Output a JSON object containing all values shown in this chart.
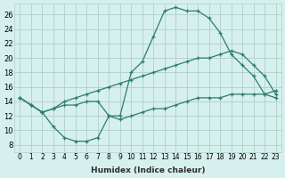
{
  "xlabel": "Humidex (Indice chaleur)",
  "background_color": "#d6f0ed",
  "grid_color": "#b0cfc9",
  "line_color": "#2d7d6e",
  "xlim": [
    -0.5,
    23.5
  ],
  "ylim": [
    7,
    27.5
  ],
  "xticks": [
    0,
    1,
    2,
    3,
    4,
    5,
    6,
    7,
    8,
    9,
    10,
    11,
    12,
    13,
    14,
    15,
    16,
    17,
    18,
    19,
    20,
    21,
    22,
    23
  ],
  "yticks": [
    8,
    10,
    12,
    14,
    16,
    18,
    20,
    22,
    24,
    26
  ],
  "line1_x": [
    0,
    1,
    2,
    3,
    4,
    5,
    6,
    7,
    8,
    9,
    10,
    11,
    12,
    13,
    14,
    15,
    16,
    17,
    18,
    19,
    20,
    21,
    22,
    23
  ],
  "line1_y": [
    14.5,
    13.5,
    12.5,
    10.5,
    9.0,
    8.5,
    8.5,
    9.0,
    12.0,
    12.0,
    18.0,
    19.5,
    23.0,
    26.5,
    27.0,
    26.5,
    26.5,
    25.5,
    23.5,
    20.5,
    19.0,
    17.5,
    15.0,
    14.5
  ],
  "line2_x": [
    0,
    1,
    2,
    3,
    4,
    5,
    6,
    7,
    8,
    9,
    10,
    11,
    12,
    13,
    14,
    15,
    16,
    17,
    18,
    19,
    20,
    21,
    22,
    23
  ],
  "line2_y": [
    14.5,
    13.5,
    12.5,
    13.0,
    14.0,
    14.5,
    15.0,
    15.5,
    16.0,
    16.5,
    17.0,
    17.5,
    18.0,
    18.5,
    19.0,
    19.5,
    20.0,
    20.0,
    20.5,
    21.0,
    20.5,
    19.0,
    17.5,
    15.0
  ],
  "line3_x": [
    0,
    1,
    2,
    3,
    4,
    5,
    6,
    7,
    8,
    9,
    10,
    11,
    12,
    13,
    14,
    15,
    16,
    17,
    18,
    19,
    20,
    21,
    22,
    23
  ],
  "line3_y": [
    14.5,
    13.5,
    12.5,
    13.0,
    13.5,
    13.5,
    14.0,
    14.0,
    12.0,
    11.5,
    12.0,
    12.5,
    13.0,
    13.0,
    13.5,
    14.0,
    14.5,
    14.5,
    14.5,
    15.0,
    15.0,
    15.0,
    15.0,
    15.5
  ]
}
